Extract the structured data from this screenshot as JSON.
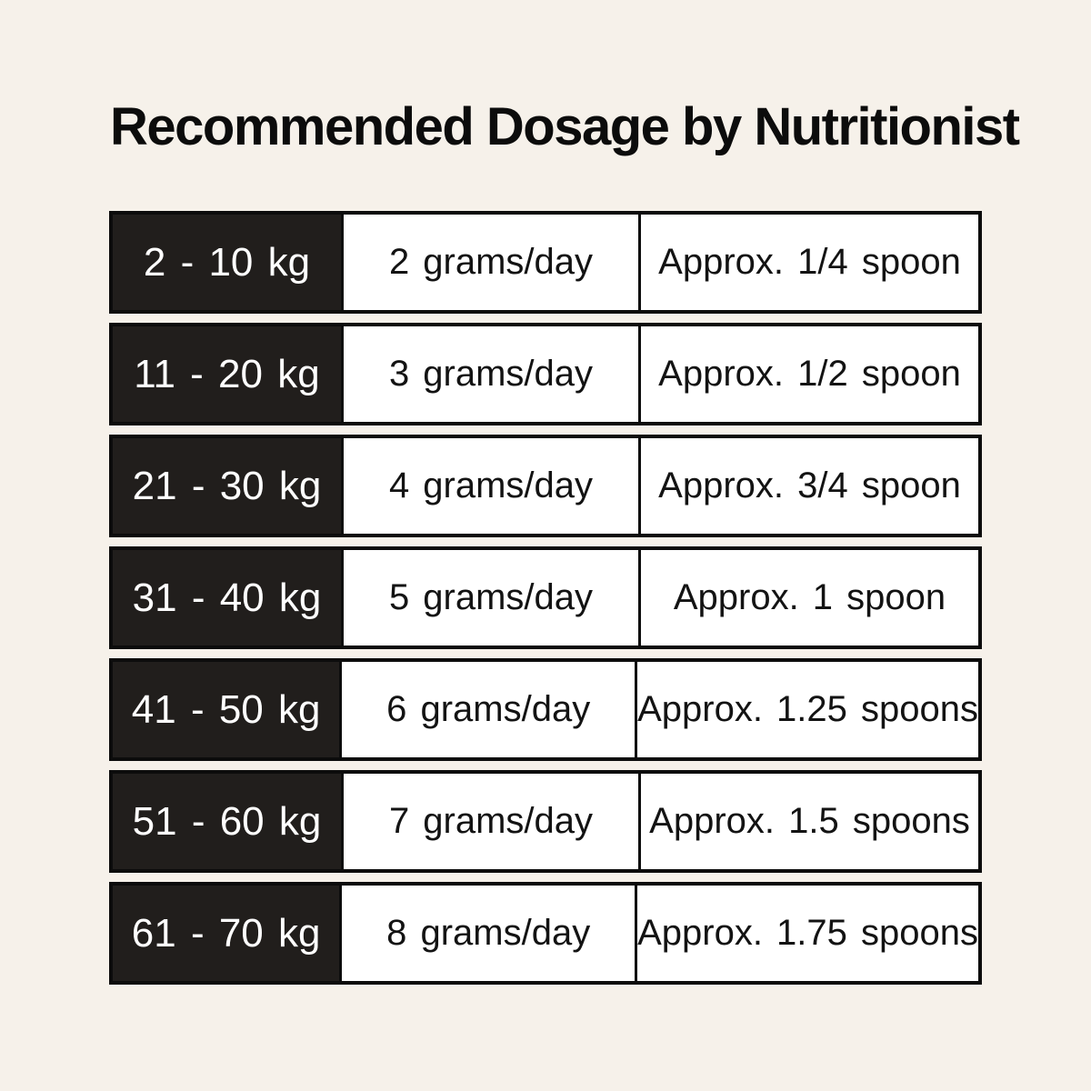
{
  "title": "Recommended Dosage by Nutritionist",
  "colors": {
    "background": "#F6F1EA",
    "ink": "#0C0C0C",
    "dark_cell": "#211E1C",
    "dark_cell_text": "#FFFFFF",
    "cell_bg": "#FFFFFF",
    "cell_text": "#131313"
  },
  "chart_data": {
    "type": "table",
    "title": "Recommended Dosage by Nutritionist",
    "rows": [
      {
        "weight": "2 - 10 kg",
        "dosage": "2 grams/day",
        "spoons": "Approx. 1/4 spoon"
      },
      {
        "weight": "11 - 20 kg",
        "dosage": "3 grams/day",
        "spoons": "Approx. 1/2 spoon"
      },
      {
        "weight": "21 - 30 kg",
        "dosage": "4 grams/day",
        "spoons": "Approx. 3/4 spoon"
      },
      {
        "weight": "31 - 40 kg",
        "dosage": "5 grams/day",
        "spoons": "Approx. 1 spoon"
      },
      {
        "weight": "41 - 50 kg",
        "dosage": "6 grams/day",
        "spoons": "Approx. 1.25 spoons"
      },
      {
        "weight": "51 - 60 kg",
        "dosage": "7 grams/day",
        "spoons": "Approx. 1.5 spoons"
      },
      {
        "weight": "61 - 70 kg",
        "dosage": "8 grams/day",
        "spoons": "Approx. 1.75 spoons"
      }
    ]
  }
}
